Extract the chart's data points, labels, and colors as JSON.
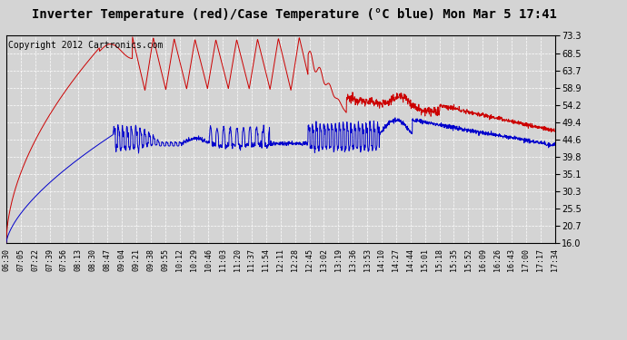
{
  "title": "Inverter Temperature (red)/Case Temperature (°C blue) Mon Mar 5 17:41",
  "copyright": "Copyright 2012 Cartronics.com",
  "background_color": "#d4d4d4",
  "plot_bg_color": "#d4d4d4",
  "grid_color": "#ffffff",
  "y_ticks": [
    16.0,
    20.7,
    25.5,
    30.3,
    35.1,
    39.8,
    44.6,
    49.4,
    54.2,
    58.9,
    63.7,
    68.5,
    73.3
  ],
  "y_min": 16.0,
  "y_max": 73.3,
  "x_labels": [
    "06:30",
    "07:05",
    "07:22",
    "07:39",
    "07:56",
    "08:13",
    "08:30",
    "08:47",
    "09:04",
    "09:21",
    "09:38",
    "09:55",
    "10:12",
    "10:29",
    "10:46",
    "11:03",
    "11:20",
    "11:37",
    "11:54",
    "12:11",
    "12:28",
    "12:45",
    "13:02",
    "13:19",
    "13:36",
    "13:53",
    "14:10",
    "14:27",
    "14:44",
    "15:01",
    "15:18",
    "15:35",
    "15:52",
    "16:09",
    "16:26",
    "16:43",
    "17:00",
    "17:17",
    "17:34"
  ],
  "red_line_color": "#cc0000",
  "blue_line_color": "#0000cc",
  "title_fontsize": 10,
  "copyright_fontsize": 7
}
